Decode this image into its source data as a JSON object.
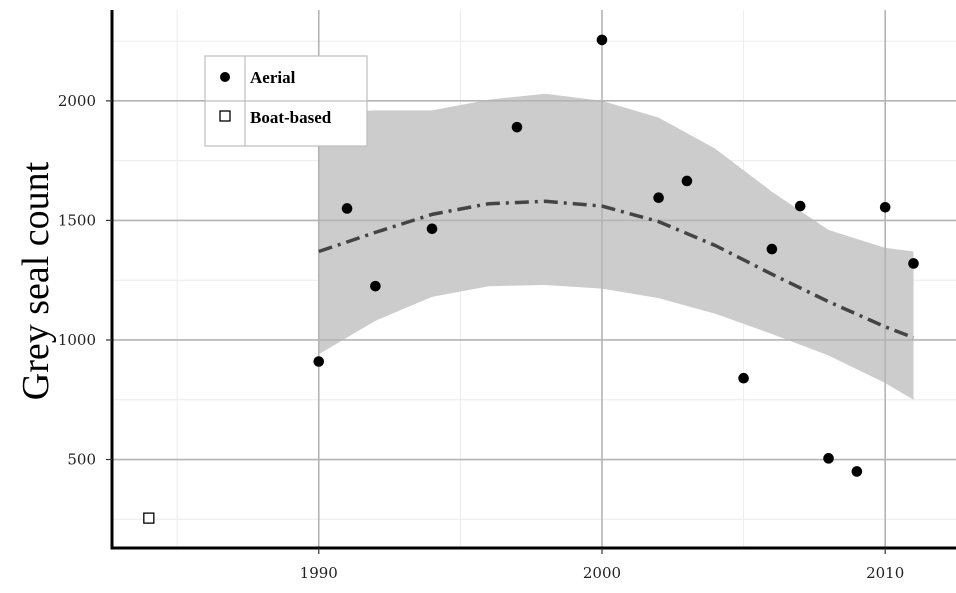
{
  "chart_data": {
    "type": "scatter",
    "title": "",
    "xlabel": "",
    "ylabel": "Grey seal count",
    "xlim": [
      1982.7,
      2012.5
    ],
    "ylim": [
      130,
      2380
    ],
    "x_ticks": [
      1990,
      2000,
      2010
    ],
    "y_ticks": [
      500,
      1000,
      1500,
      2000
    ],
    "grid": true,
    "legend_position": "top-left",
    "series": [
      {
        "name": "Aerial",
        "marker": "filled-circle",
        "color": "#000000",
        "points": [
          [
            1990,
            910
          ],
          [
            1991,
            1550
          ],
          [
            1992,
            1225
          ],
          [
            1994,
            1465
          ],
          [
            1997,
            1890
          ],
          [
            2000,
            2255
          ],
          [
            2002,
            1595
          ],
          [
            2003,
            1665
          ],
          [
            2005,
            840
          ],
          [
            2006,
            1380
          ],
          [
            2007,
            1560
          ],
          [
            2008,
            505
          ],
          [
            2009,
            450
          ],
          [
            2010,
            1555
          ],
          [
            2011,
            1320
          ]
        ]
      },
      {
        "name": "Boat-based",
        "marker": "open-square",
        "color": "#000000",
        "points": [
          [
            1984,
            255
          ]
        ]
      }
    ],
    "trend": {
      "style": "dash-dot",
      "color": "#444444",
      "fit_x": [
        1990,
        1992,
        1994,
        1996,
        1998,
        2000,
        2002,
        2004,
        2006,
        2008,
        2010,
        2011
      ],
      "fit_y": [
        1370,
        1450,
        1525,
        1570,
        1580,
        1560,
        1495,
        1395,
        1275,
        1160,
        1055,
        1010
      ],
      "ci_lower": [
        940,
        1080,
        1180,
        1225,
        1230,
        1215,
        1175,
        1110,
        1025,
        935,
        820,
        750
      ],
      "ci_upper": [
        1950,
        1960,
        1960,
        2005,
        2030,
        2000,
        1930,
        1800,
        1620,
        1460,
        1385,
        1370
      ],
      "band_color": "#cccccc"
    }
  }
}
